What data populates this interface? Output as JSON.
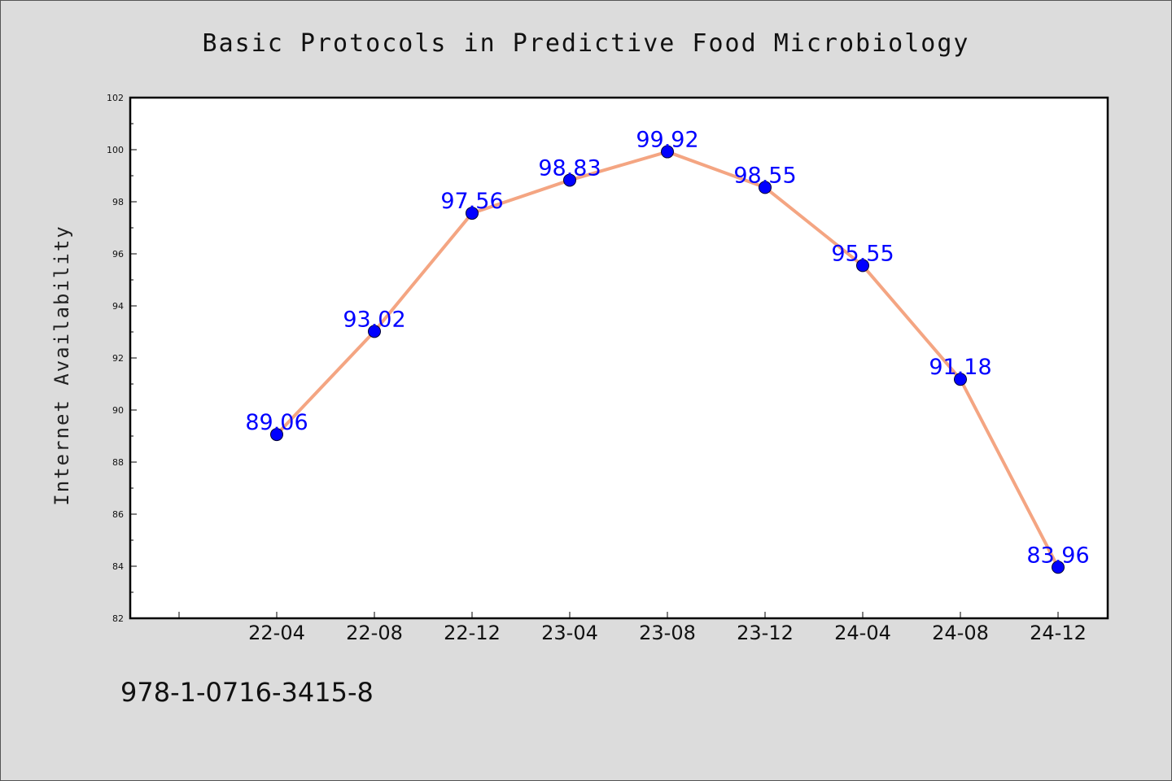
{
  "chart_data": {
    "type": "line",
    "title": "Basic Protocols in Predictive Food Microbiology",
    "xlabel": "",
    "ylabel": "Internet Availability",
    "categories": [
      "22-04",
      "22-08",
      "22-12",
      "23-04",
      "23-08",
      "23-12",
      "24-04",
      "24-08",
      "24-12"
    ],
    "series": [
      {
        "values": [
          89.06,
          93.02,
          97.56,
          98.83,
          99.92,
          98.55,
          95.55,
          91.18,
          83.96
        ],
        "labels": [
          "89.06",
          "93.02",
          "97.56",
          "98.83",
          "99.92",
          "98.55",
          "95.55",
          "91.18",
          "83.96"
        ],
        "line_color": "#f4a582",
        "marker_color": "#0000ff"
      }
    ],
    "ylim": [
      82,
      102
    ],
    "yticks": [
      "82",
      "84",
      "86",
      "88",
      "90",
      "92",
      "94",
      "96",
      "98",
      "100",
      "102"
    ],
    "grid": false,
    "legend": "none"
  },
  "footer": {
    "code": "978-1-0716-3415-8"
  },
  "colors": {
    "background": "#dcdcdc",
    "plot_background": "#ffffff",
    "label_color": "#0000ff"
  }
}
